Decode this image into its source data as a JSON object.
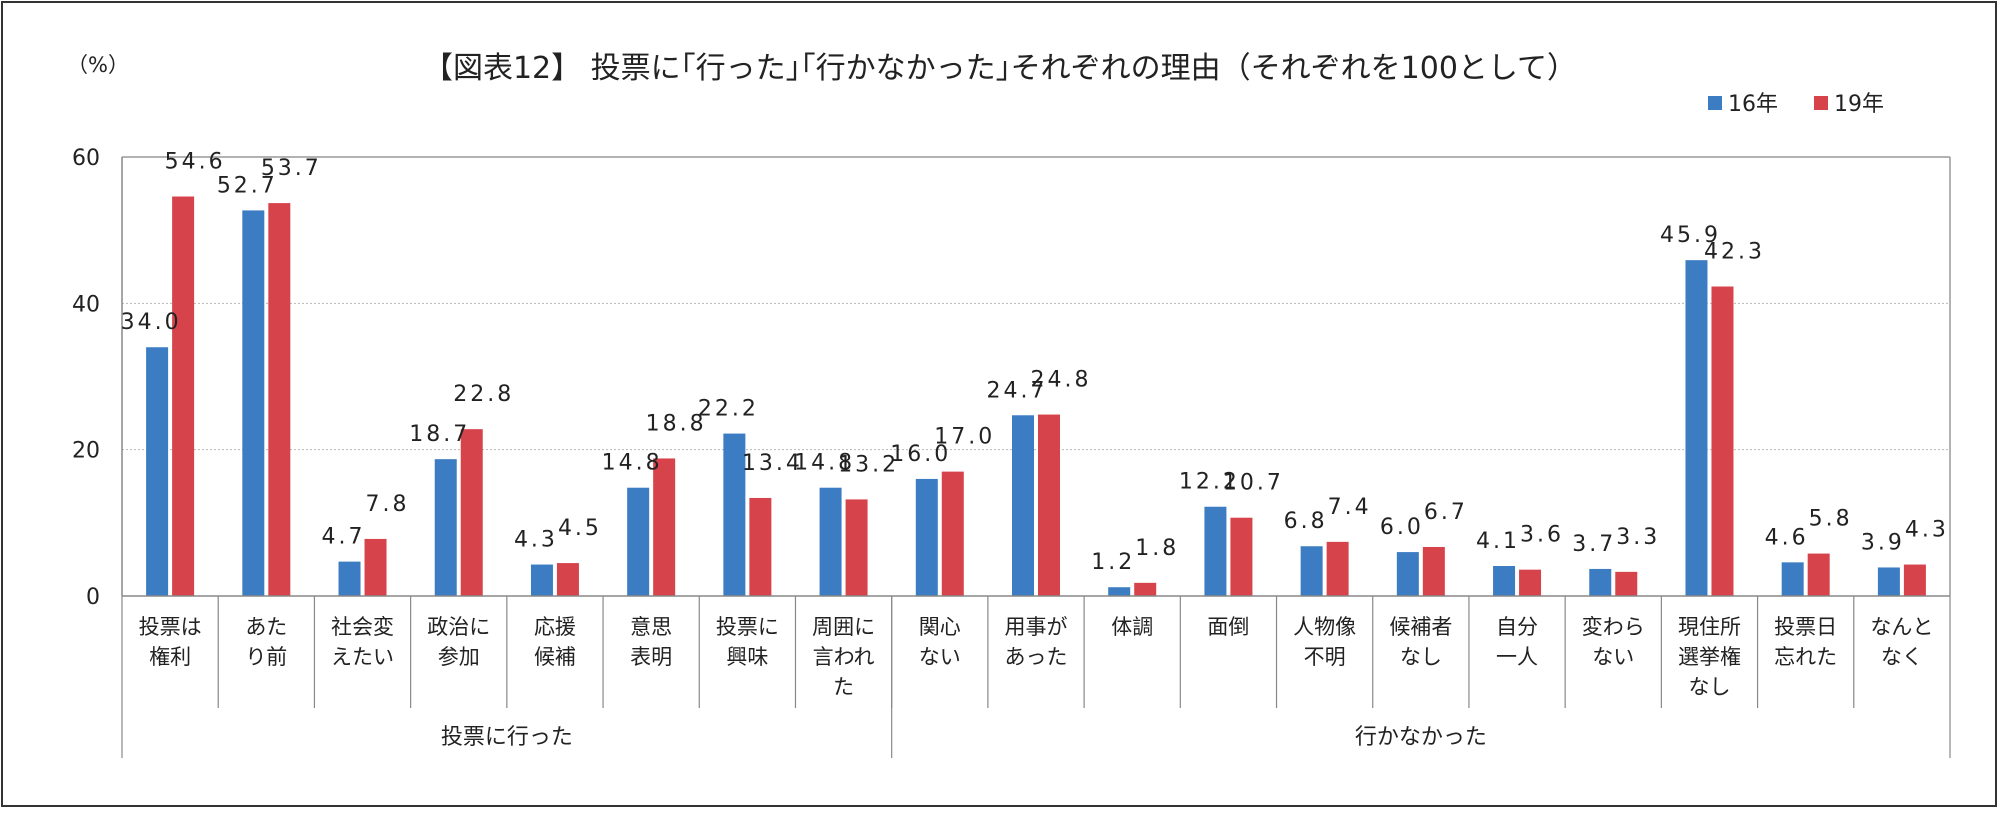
{
  "chart_data": {
    "type": "bar",
    "title": "【図表12】 投票に｢行った｣｢行かなかった｣それぞれの理由（それぞれを100として）",
    "unit_label": "（%）",
    "ylim": [
      0,
      60
    ],
    "yticks": [
      "0",
      "20",
      "40",
      "60"
    ],
    "grid": true,
    "legend_position": "top-right",
    "categories": [
      [
        "投票は",
        "権利"
      ],
      [
        "あた",
        "り前"
      ],
      [
        "社会変",
        "えたい"
      ],
      [
        "政治に",
        "参加"
      ],
      [
        "応援",
        "候補"
      ],
      [
        "意思",
        "表明"
      ],
      [
        "投票に",
        "興味"
      ],
      [
        "周囲に",
        "言われ",
        "た"
      ],
      [
        "関心",
        "ない"
      ],
      [
        "用事が",
        "あった"
      ],
      [
        "体調"
      ],
      [
        "面倒"
      ],
      [
        "人物像",
        "不明"
      ],
      [
        "候補者",
        "なし"
      ],
      [
        "自分",
        "一人"
      ],
      [
        "変わら",
        "ない"
      ],
      [
        "現住所",
        "選挙権",
        "なし"
      ],
      [
        "投票日",
        "忘れた"
      ],
      [
        "なんと",
        "なく"
      ]
    ],
    "groups": [
      {
        "label": "投票に行った",
        "count": 8
      },
      {
        "label": "行かなかった",
        "count": 11
      }
    ],
    "series": [
      {
        "name": "16年",
        "color": "#3c7cc3",
        "values": [
          34.0,
          52.7,
          4.7,
          18.7,
          4.3,
          14.8,
          22.2,
          14.8,
          16.0,
          24.7,
          1.2,
          12.2,
          6.8,
          6.0,
          4.1,
          3.7,
          45.9,
          4.6,
          3.9
        ],
        "labels": [
          "34.0",
          "52.7",
          "4.7",
          "18.7",
          "4.3",
          "14.8",
          "22.2",
          "14.8",
          "16.0",
          "24.7",
          "1.2",
          "12.2",
          "6.8",
          "6.0",
          "4.1",
          "3.7",
          "45.9",
          "4.6",
          "3.9"
        ]
      },
      {
        "name": "19年",
        "color": "#d7434b",
        "values": [
          54.6,
          53.7,
          7.8,
          22.8,
          4.5,
          18.8,
          13.4,
          13.2,
          17.0,
          24.8,
          1.8,
          10.7,
          7.4,
          6.7,
          3.6,
          3.3,
          42.3,
          5.8,
          4.3
        ],
        "labels": [
          "54.6",
          "53.7",
          "7.8",
          "22.8",
          "4.5",
          "18.8",
          "13.4",
          "13.2",
          "17.0",
          "24.8",
          "1.8",
          "10.7",
          "7.4",
          "6.7",
          "3.6",
          "3.3",
          "42.3",
          "5.8",
          "4.3"
        ]
      }
    ]
  }
}
